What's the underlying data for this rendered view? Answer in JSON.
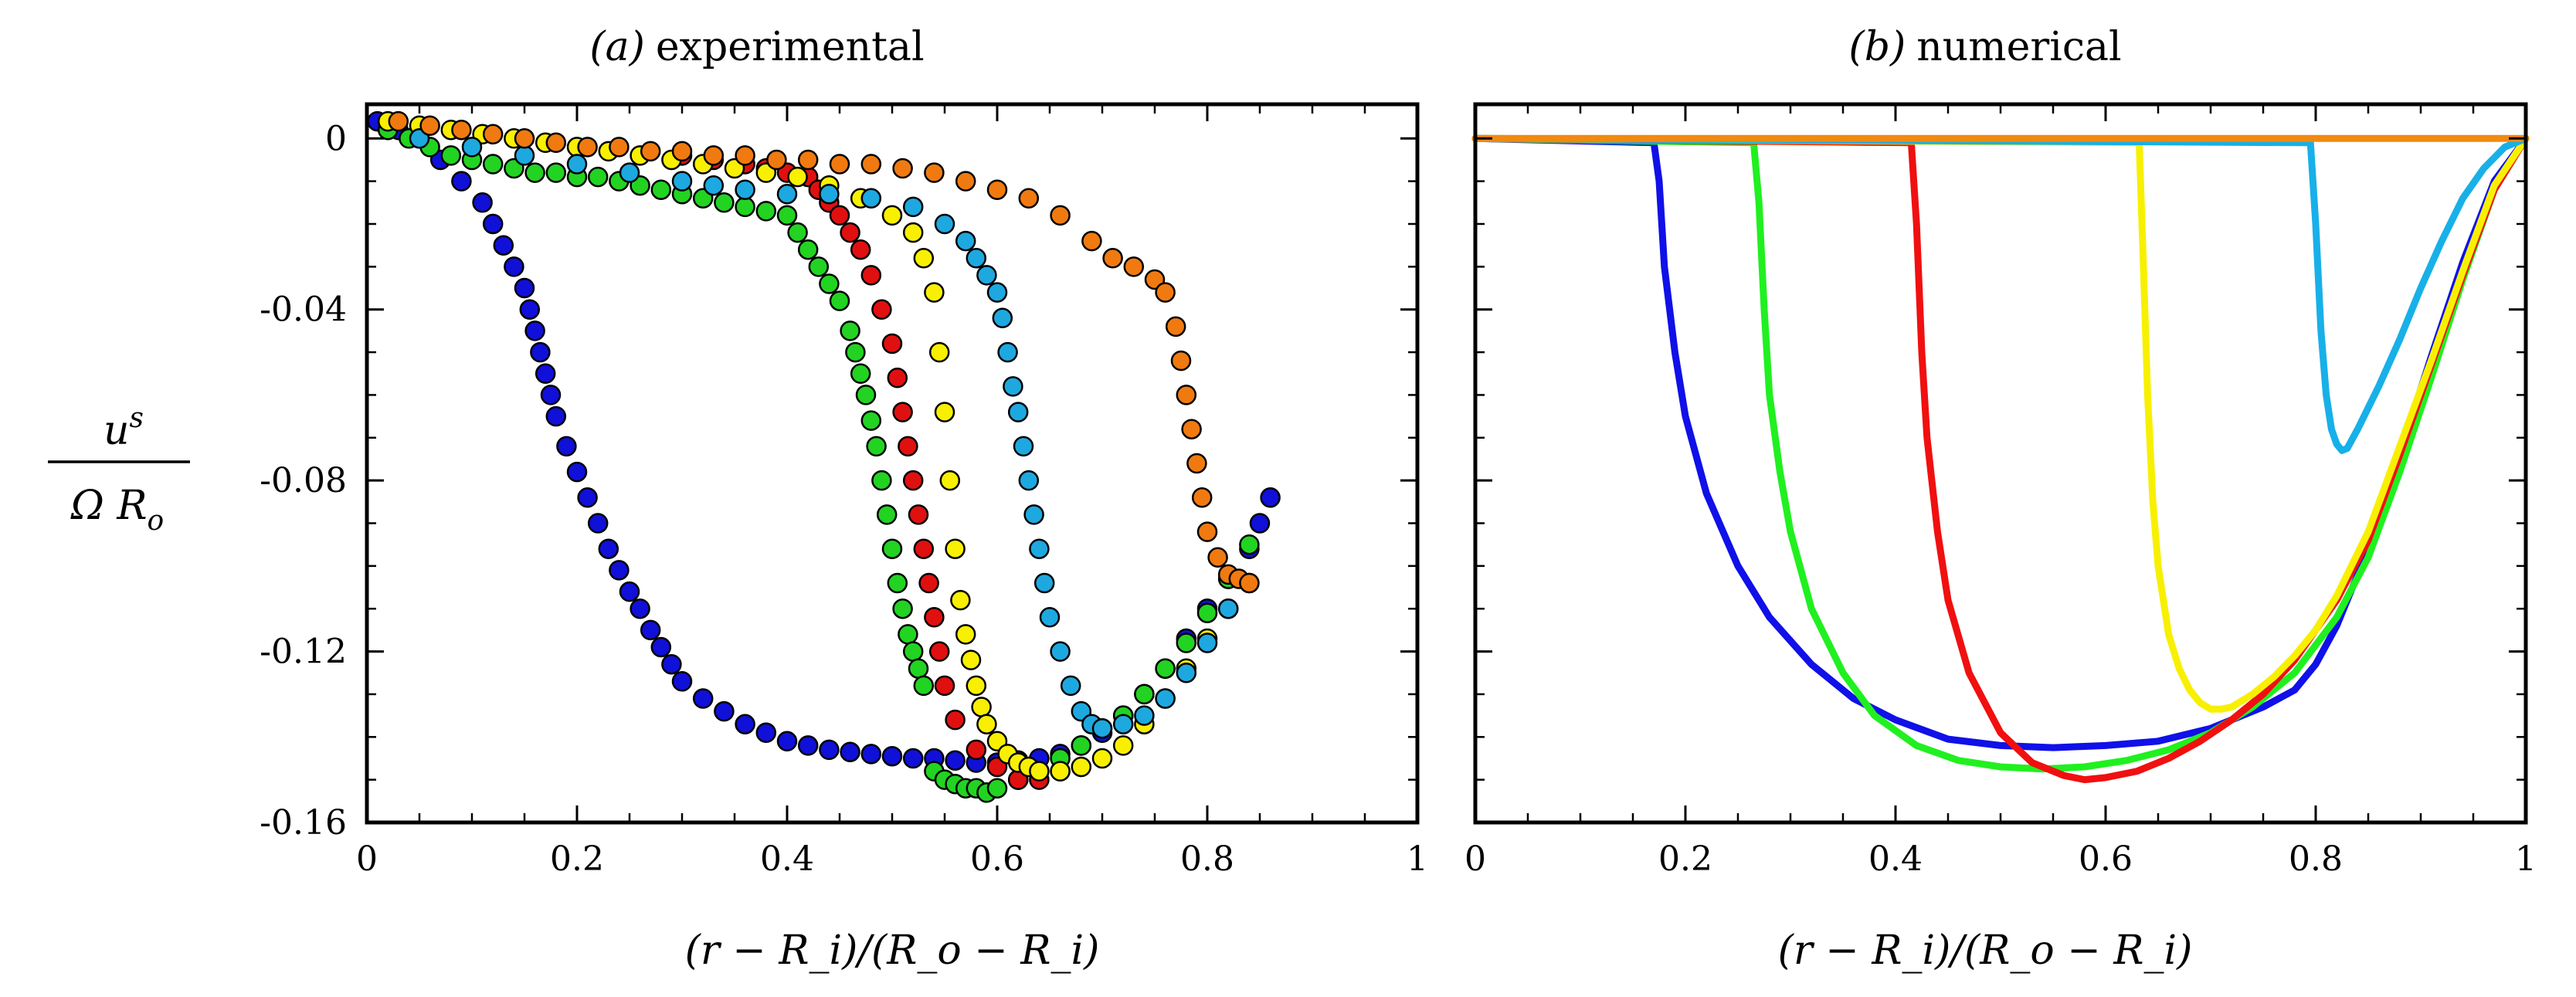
{
  "figure": {
    "ylabel_numerator": "u",
    "ylabel_numerator_sup": "s",
    "ylabel_denominator": "Ω R",
    "ylabel_denominator_sub": "o"
  },
  "chart_data": [
    {
      "type": "scatter",
      "title_tag": "(a)",
      "title": "experimental",
      "xlabel": "(r − R_i)/(R_o − R_i)",
      "xlim": [
        0,
        1
      ],
      "ylim": [
        -0.16,
        0.008
      ],
      "xticks": [
        0,
        0.2,
        0.4,
        0.6,
        0.8,
        1
      ],
      "xtick_labels": [
        "0",
        "0.2",
        "0.4",
        "0.6",
        "0.8",
        "1"
      ],
      "yticks": [
        0,
        -0.04,
        -0.08,
        -0.12,
        -0.16
      ],
      "ytick_labels": [
        "0",
        "-0.04",
        "-0.08",
        "-0.12",
        "-0.16"
      ],
      "series": [
        {
          "name": "blue",
          "color": "#1010d8",
          "x": [
            0.01,
            0.03,
            0.05,
            0.07,
            0.09,
            0.11,
            0.12,
            0.13,
            0.14,
            0.15,
            0.155,
            0.16,
            0.165,
            0.17,
            0.175,
            0.18,
            0.19,
            0.2,
            0.21,
            0.22,
            0.23,
            0.24,
            0.25,
            0.26,
            0.27,
            0.28,
            0.29,
            0.3,
            0.32,
            0.34,
            0.36,
            0.38,
            0.4,
            0.42,
            0.44,
            0.46,
            0.48,
            0.5,
            0.52,
            0.54,
            0.56,
            0.58,
            0.6,
            0.62,
            0.64,
            0.66,
            0.68,
            0.7,
            0.72,
            0.74,
            0.76,
            0.78,
            0.8,
            0.82,
            0.84,
            0.85,
            0.86
          ],
          "y": [
            0.004,
            0.002,
            0.0,
            -0.005,
            -0.01,
            -0.015,
            -0.02,
            -0.025,
            -0.03,
            -0.035,
            -0.04,
            -0.045,
            -0.05,
            -0.055,
            -0.06,
            -0.065,
            -0.072,
            -0.078,
            -0.084,
            -0.09,
            -0.096,
            -0.101,
            -0.106,
            -0.11,
            -0.115,
            -0.119,
            -0.123,
            -0.127,
            -0.131,
            -0.134,
            -0.137,
            -0.139,
            -0.141,
            -0.142,
            -0.143,
            -0.1435,
            -0.144,
            -0.1445,
            -0.145,
            -0.145,
            -0.1455,
            -0.146,
            -0.146,
            -0.1455,
            -0.145,
            -0.144,
            -0.142,
            -0.139,
            -0.135,
            -0.13,
            -0.124,
            -0.117,
            -0.11,
            -0.103,
            -0.096,
            -0.09,
            -0.084
          ]
        },
        {
          "name": "green",
          "color": "#22d322",
          "x": [
            0.02,
            0.04,
            0.06,
            0.08,
            0.1,
            0.12,
            0.14,
            0.16,
            0.18,
            0.2,
            0.22,
            0.24,
            0.26,
            0.28,
            0.3,
            0.32,
            0.34,
            0.36,
            0.38,
            0.4,
            0.41,
            0.42,
            0.43,
            0.44,
            0.45,
            0.46,
            0.465,
            0.47,
            0.475,
            0.48,
            0.485,
            0.49,
            0.495,
            0.5,
            0.505,
            0.51,
            0.515,
            0.52,
            0.525,
            0.53,
            0.54,
            0.55,
            0.56,
            0.57,
            0.58,
            0.59,
            0.6,
            0.62,
            0.64,
            0.66,
            0.68,
            0.7,
            0.72,
            0.74,
            0.76,
            0.78,
            0.8,
            0.82,
            0.84
          ],
          "y": [
            0.002,
            0.0,
            -0.002,
            -0.004,
            -0.005,
            -0.006,
            -0.007,
            -0.008,
            -0.008,
            -0.009,
            -0.009,
            -0.01,
            -0.011,
            -0.012,
            -0.013,
            -0.014,
            -0.015,
            -0.016,
            -0.017,
            -0.018,
            -0.022,
            -0.026,
            -0.03,
            -0.034,
            -0.038,
            -0.045,
            -0.05,
            -0.055,
            -0.06,
            -0.066,
            -0.072,
            -0.08,
            -0.088,
            -0.096,
            -0.104,
            -0.11,
            -0.116,
            -0.12,
            -0.124,
            -0.128,
            -0.148,
            -0.15,
            -0.151,
            -0.152,
            -0.152,
            -0.153,
            -0.152,
            -0.15,
            -0.148,
            -0.145,
            -0.142,
            -0.138,
            -0.135,
            -0.13,
            -0.124,
            -0.118,
            -0.111,
            -0.103,
            -0.095
          ]
        },
        {
          "name": "red",
          "color": "#e01010",
          "x": [
            0.3,
            0.33,
            0.36,
            0.38,
            0.4,
            0.42,
            0.43,
            0.44,
            0.45,
            0.46,
            0.47,
            0.48,
            0.49,
            0.5,
            0.505,
            0.51,
            0.515,
            0.52,
            0.525,
            0.53,
            0.535,
            0.54,
            0.545,
            0.55,
            0.56,
            0.58,
            0.6,
            0.62,
            0.64,
            0.66
          ],
          "y": [
            -0.004,
            -0.005,
            -0.006,
            -0.007,
            -0.008,
            -0.009,
            -0.012,
            -0.015,
            -0.018,
            -0.022,
            -0.026,
            -0.032,
            -0.04,
            -0.048,
            -0.056,
            -0.064,
            -0.072,
            -0.08,
            -0.088,
            -0.096,
            -0.104,
            -0.112,
            -0.12,
            -0.128,
            -0.136,
            -0.143,
            -0.147,
            -0.15,
            -0.15,
            -0.148
          ]
        },
        {
          "name": "yellow",
          "color": "#f8f000",
          "x": [
            0.02,
            0.05,
            0.08,
            0.11,
            0.14,
            0.17,
            0.2,
            0.23,
            0.26,
            0.29,
            0.32,
            0.35,
            0.38,
            0.41,
            0.44,
            0.47,
            0.5,
            0.52,
            0.53,
            0.54,
            0.545,
            0.55,
            0.555,
            0.56,
            0.565,
            0.57,
            0.575,
            0.58,
            0.585,
            0.59,
            0.6,
            0.61,
            0.62,
            0.63,
            0.64,
            0.66,
            0.68,
            0.7,
            0.72,
            0.74,
            0.76,
            0.78,
            0.8,
            0.82,
            0.84
          ],
          "y": [
            0.004,
            0.003,
            0.002,
            0.001,
            0.0,
            -0.001,
            -0.002,
            -0.003,
            -0.004,
            -0.005,
            -0.006,
            -0.007,
            -0.008,
            -0.009,
            -0.011,
            -0.014,
            -0.018,
            -0.022,
            -0.028,
            -0.036,
            -0.05,
            -0.064,
            -0.08,
            -0.096,
            -0.108,
            -0.116,
            -0.122,
            -0.128,
            -0.133,
            -0.137,
            -0.141,
            -0.144,
            -0.146,
            -0.147,
            -0.148,
            -0.148,
            -0.147,
            -0.145,
            -0.142,
            -0.137,
            -0.131,
            -0.124,
            -0.117,
            -0.11,
            -0.104
          ]
        },
        {
          "name": "cyan",
          "color": "#1ea8e0",
          "x": [
            0.05,
            0.1,
            0.15,
            0.2,
            0.25,
            0.3,
            0.33,
            0.36,
            0.4,
            0.44,
            0.48,
            0.52,
            0.55,
            0.57,
            0.58,
            0.59,
            0.6,
            0.605,
            0.61,
            0.615,
            0.62,
            0.625,
            0.63,
            0.635,
            0.64,
            0.645,
            0.65,
            0.66,
            0.67,
            0.68,
            0.69,
            0.7,
            0.72,
            0.74,
            0.76,
            0.78,
            0.8,
            0.82
          ],
          "y": [
            0.0,
            -0.002,
            -0.004,
            -0.006,
            -0.008,
            -0.01,
            -0.011,
            -0.012,
            -0.013,
            -0.013,
            -0.014,
            -0.016,
            -0.02,
            -0.024,
            -0.028,
            -0.032,
            -0.036,
            -0.042,
            -0.05,
            -0.058,
            -0.064,
            -0.072,
            -0.08,
            -0.088,
            -0.096,
            -0.104,
            -0.112,
            -0.12,
            -0.128,
            -0.134,
            -0.137,
            -0.138,
            -0.137,
            -0.135,
            -0.131,
            -0.125,
            -0.118,
            -0.11
          ]
        },
        {
          "name": "orange",
          "color": "#f07a10",
          "x": [
            0.03,
            0.06,
            0.09,
            0.12,
            0.15,
            0.18,
            0.21,
            0.24,
            0.27,
            0.3,
            0.33,
            0.36,
            0.39,
            0.42,
            0.45,
            0.48,
            0.51,
            0.54,
            0.57,
            0.6,
            0.63,
            0.66,
            0.69,
            0.71,
            0.73,
            0.75,
            0.76,
            0.77,
            0.775,
            0.78,
            0.785,
            0.79,
            0.795,
            0.8,
            0.81,
            0.82,
            0.83,
            0.84
          ],
          "y": [
            0.004,
            0.003,
            0.002,
            0.001,
            0.0,
            -0.001,
            -0.002,
            -0.002,
            -0.003,
            -0.003,
            -0.004,
            -0.004,
            -0.005,
            -0.005,
            -0.006,
            -0.006,
            -0.007,
            -0.008,
            -0.01,
            -0.012,
            -0.014,
            -0.018,
            -0.024,
            -0.028,
            -0.03,
            -0.033,
            -0.036,
            -0.044,
            -0.052,
            -0.06,
            -0.068,
            -0.076,
            -0.084,
            -0.092,
            -0.098,
            -0.102,
            -0.103,
            -0.104
          ]
        }
      ]
    },
    {
      "type": "line",
      "title_tag": "(b)",
      "title": "numerical",
      "xlabel": "(r − R_i)/(R_o − R_i)",
      "xlim": [
        0,
        1
      ],
      "ylim": [
        -0.16,
        0.008
      ],
      "xticks": [
        0,
        0.2,
        0.4,
        0.6,
        0.8,
        1
      ],
      "xtick_labels": [
        "0",
        "0.2",
        "0.4",
        "0.6",
        "0.8",
        "1"
      ],
      "yticks": [
        0,
        -0.04,
        -0.08,
        -0.12,
        -0.16
      ],
      "ytick_labels": [],
      "series": [
        {
          "name": "blue",
          "color": "#1010e8",
          "x": [
            0,
            0.17,
            0.175,
            0.18,
            0.19,
            0.2,
            0.22,
            0.25,
            0.28,
            0.32,
            0.36,
            0.4,
            0.45,
            0.5,
            0.55,
            0.6,
            0.65,
            0.7,
            0.75,
            0.78,
            0.8,
            0.82,
            0.85,
            0.88,
            0.91,
            0.94,
            0.97,
            1.0
          ],
          "y": [
            0,
            -0.001,
            -0.01,
            -0.03,
            -0.05,
            -0.065,
            -0.083,
            -0.1,
            -0.112,
            -0.123,
            -0.131,
            -0.136,
            -0.1405,
            -0.142,
            -0.1425,
            -0.142,
            -0.141,
            -0.138,
            -0.133,
            -0.129,
            -0.123,
            -0.114,
            -0.096,
            -0.074,
            -0.051,
            -0.029,
            -0.01,
            0
          ]
        },
        {
          "name": "green",
          "color": "#20f020",
          "x": [
            0,
            0.265,
            0.27,
            0.275,
            0.28,
            0.29,
            0.3,
            0.32,
            0.35,
            0.38,
            0.42,
            0.46,
            0.5,
            0.54,
            0.58,
            0.62,
            0.66,
            0.7,
            0.74,
            0.78,
            0.82,
            0.85,
            0.88,
            0.91,
            0.94,
            0.97,
            1.0
          ],
          "y": [
            0,
            -0.001,
            -0.015,
            -0.04,
            -0.06,
            -0.078,
            -0.092,
            -0.11,
            -0.125,
            -0.135,
            -0.142,
            -0.1455,
            -0.147,
            -0.1475,
            -0.147,
            -0.1455,
            -0.143,
            -0.139,
            -0.133,
            -0.125,
            -0.112,
            -0.098,
            -0.078,
            -0.056,
            -0.033,
            -0.012,
            0
          ]
        },
        {
          "name": "red",
          "color": "#f01010",
          "x": [
            0,
            0.415,
            0.42,
            0.425,
            0.43,
            0.44,
            0.45,
            0.47,
            0.5,
            0.53,
            0.56,
            0.58,
            0.6,
            0.63,
            0.66,
            0.69,
            0.72,
            0.75,
            0.78,
            0.82,
            0.85,
            0.88,
            0.91,
            0.94,
            0.97,
            1.0
          ],
          "y": [
            0,
            -0.001,
            -0.02,
            -0.05,
            -0.07,
            -0.092,
            -0.108,
            -0.125,
            -0.139,
            -0.146,
            -0.149,
            -0.15,
            -0.1495,
            -0.148,
            -0.145,
            -0.141,
            -0.136,
            -0.13,
            -0.122,
            -0.108,
            -0.094,
            -0.074,
            -0.053,
            -0.032,
            -0.012,
            0
          ]
        },
        {
          "name": "yellow",
          "color": "#f8f000",
          "x": [
            0,
            0.632,
            0.636,
            0.64,
            0.645,
            0.65,
            0.66,
            0.67,
            0.68,
            0.69,
            0.7,
            0.71,
            0.72,
            0.74,
            0.76,
            0.78,
            0.8,
            0.82,
            0.85,
            0.88,
            0.91,
            0.94,
            0.97,
            1.0
          ],
          "y": [
            0,
            -0.001,
            -0.03,
            -0.06,
            -0.085,
            -0.1,
            -0.116,
            -0.124,
            -0.129,
            -0.132,
            -0.1335,
            -0.1335,
            -0.133,
            -0.13,
            -0.126,
            -0.121,
            -0.115,
            -0.107,
            -0.092,
            -0.072,
            -0.052,
            -0.031,
            -0.011,
            0
          ]
        },
        {
          "name": "cyan",
          "color": "#18b0e8",
          "x": [
            0,
            0.795,
            0.8,
            0.805,
            0.81,
            0.815,
            0.82,
            0.825,
            0.83,
            0.84,
            0.85,
            0.86,
            0.88,
            0.9,
            0.92,
            0.94,
            0.96,
            0.98,
            1.0
          ],
          "y": [
            0,
            -0.001,
            -0.02,
            -0.045,
            -0.06,
            -0.068,
            -0.0715,
            -0.073,
            -0.0725,
            -0.068,
            -0.063,
            -0.058,
            -0.047,
            -0.035,
            -0.024,
            -0.014,
            -0.007,
            -0.002,
            0
          ]
        },
        {
          "name": "orange",
          "color": "#f08a10",
          "x": [
            0,
            1.0
          ],
          "y": [
            0,
            0
          ]
        }
      ]
    }
  ]
}
